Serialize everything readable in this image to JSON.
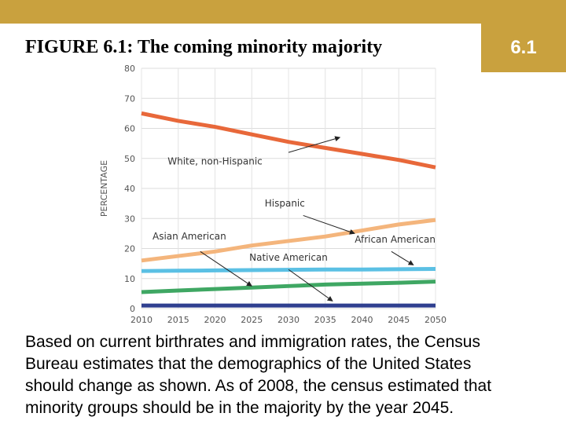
{
  "slide": {
    "title": "FIGURE 6.1: The coming minority majority",
    "number": "6.1",
    "caption_lines": [
      "Based on current birthrates and immigration rates, the Census",
      "Bureau estimates that the demographics of the United States",
      "should change as shown. As of 2008, the census estimated that",
      "minority groups should be in the majority by the year 2045."
    ]
  },
  "colors": {
    "accent": "#c9a13e",
    "white_series": "#e8683a",
    "hispanic_series": "#f4b57c",
    "african_american_series": "#5bc0e4",
    "asian_american_series": "#3fa763",
    "native_american_series": "#2f3f8f"
  },
  "chart_data": {
    "type": "line",
    "x": [
      2010,
      2015,
      2020,
      2025,
      2030,
      2035,
      2040,
      2045,
      2050
    ],
    "ylabel": "PERCENTAGE",
    "xlabel": "",
    "ylim": [
      0,
      80
    ],
    "yticks": [
      0,
      10,
      20,
      30,
      40,
      50,
      60,
      70,
      80
    ],
    "grid": true,
    "series": [
      {
        "name": "White, non-Hispanic",
        "values": [
          65,
          62.5,
          60.5,
          58,
          55.5,
          53.5,
          51.5,
          49.5,
          47
        ],
        "color": "#e8683a"
      },
      {
        "name": "Hispanic",
        "values": [
          16,
          17.5,
          19,
          21,
          22.5,
          24,
          26,
          28,
          29.5
        ],
        "color": "#f4b57c"
      },
      {
        "name": "African American",
        "values": [
          12.5,
          12.6,
          12.7,
          12.8,
          12.9,
          13,
          13,
          13.1,
          13.2
        ],
        "color": "#5bc0e4"
      },
      {
        "name": "Asian American",
        "values": [
          5.5,
          6,
          6.5,
          7,
          7.5,
          8,
          8.3,
          8.6,
          9
        ],
        "color": "#3fa763"
      },
      {
        "name": "Native American",
        "values": [
          1,
          1,
          1,
          1,
          1,
          1,
          1,
          1,
          1
        ],
        "color": "#2f3f8f"
      }
    ]
  }
}
